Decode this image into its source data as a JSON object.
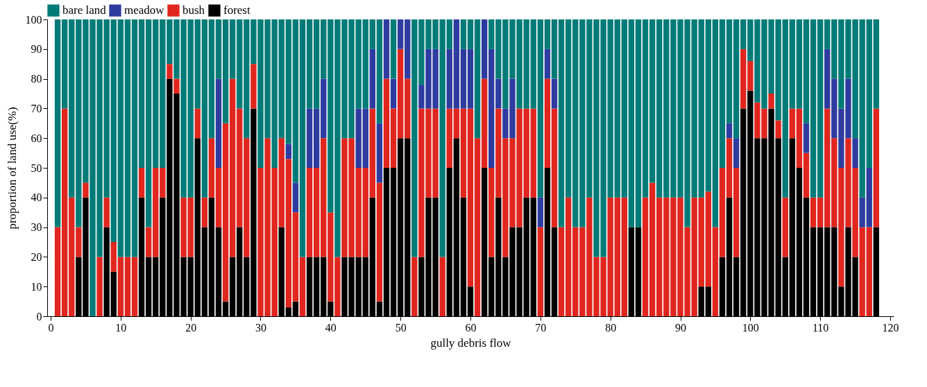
{
  "chart_data": {
    "type": "bar",
    "stacked": true,
    "xlabel": "gully debris flow",
    "ylabel": "proportion of land use(%)",
    "legend": "top",
    "xlim": [
      0,
      120
    ],
    "xticks": [
      0,
      10,
      20,
      30,
      40,
      50,
      60,
      70,
      80,
      90,
      100,
      110,
      120
    ],
    "ylim": [
      0,
      100
    ],
    "yticks": [
      0,
      10,
      20,
      30,
      40,
      50,
      60,
      70,
      80,
      90,
      100
    ],
    "x": [
      1,
      2,
      3,
      4,
      5,
      6,
      7,
      8,
      9,
      10,
      11,
      12,
      13,
      14,
      15,
      16,
      17,
      18,
      19,
      20,
      21,
      22,
      23,
      24,
      25,
      26,
      27,
      28,
      29,
      30,
      31,
      32,
      33,
      34,
      35,
      36,
      37,
      38,
      39,
      40,
      41,
      42,
      43,
      44,
      45,
      46,
      47,
      48,
      49,
      50,
      51,
      52,
      53,
      54,
      55,
      56,
      57,
      58,
      59,
      60,
      61,
      62,
      63,
      64,
      65,
      66,
      67,
      68,
      69,
      70,
      71,
      72,
      73,
      74,
      75,
      76,
      77,
      78,
      79,
      80,
      81,
      82,
      83,
      84,
      85,
      86,
      87,
      88,
      89,
      90,
      91,
      92,
      93,
      94,
      95,
      96,
      97,
      98,
      99,
      100,
      101,
      102,
      103,
      104,
      105,
      106,
      107,
      108,
      109,
      110,
      111,
      112,
      113,
      114,
      115,
      116,
      117,
      118
    ],
    "series": [
      {
        "name": "forest",
        "color": "#000000",
        "values": [
          0,
          0,
          0,
          20,
          40,
          0,
          0,
          30,
          15,
          0,
          0,
          0,
          40,
          20,
          20,
          40,
          80,
          75,
          20,
          20,
          60,
          30,
          40,
          30,
          5,
          20,
          30,
          20,
          70,
          0,
          0,
          0,
          30,
          3,
          5,
          0,
          20,
          20,
          20,
          5,
          0,
          20,
          20,
          20,
          20,
          40,
          5,
          50,
          50,
          60,
          60,
          0,
          20,
          40,
          40,
          0,
          50,
          60,
          40,
          10,
          0,
          50,
          20,
          40,
          20,
          30,
          30,
          40,
          40,
          0,
          50,
          30,
          0,
          0,
          0,
          0,
          0,
          0,
          0,
          0,
          0,
          0,
          30,
          30,
          0,
          0,
          0,
          0,
          0,
          0,
          0,
          0,
          10,
          10,
          0,
          20,
          40,
          20,
          70,
          76,
          60,
          60,
          70,
          60,
          20,
          60,
          50,
          40,
          30,
          30,
          30,
          30,
          10,
          30,
          20,
          0,
          0,
          30
        ]
      },
      {
        "name": "bush",
        "color": "#e0261e",
        "values": [
          30,
          70,
          40,
          10,
          5,
          0,
          20,
          10,
          10,
          20,
          20,
          20,
          10,
          10,
          30,
          10,
          5,
          5,
          20,
          20,
          10,
          10,
          20,
          20,
          60,
          60,
          40,
          40,
          15,
          50,
          60,
          50,
          30,
          50,
          30,
          20,
          30,
          30,
          40,
          30,
          20,
          40,
          40,
          30,
          30,
          30,
          40,
          30,
          20,
          30,
          20,
          20,
          50,
          30,
          30,
          20,
          20,
          10,
          30,
          60,
          60,
          30,
          30,
          30,
          40,
          30,
          40,
          30,
          30,
          30,
          30,
          40,
          30,
          40,
          30,
          30,
          40,
          20,
          20,
          40,
          40,
          40,
          0,
          0,
          40,
          45,
          40,
          40,
          40,
          40,
          30,
          40,
          30,
          32,
          30,
          30,
          20,
          30,
          20,
          10,
          12,
          10,
          5,
          6,
          20,
          10,
          20,
          15,
          10,
          10,
          40,
          30,
          40,
          30,
          30,
          30,
          30,
          40
        ]
      },
      {
        "name": "meadow",
        "color": "#2e3ca0",
        "values": [
          0,
          0,
          0,
          0,
          0,
          0,
          0,
          0,
          0,
          0,
          0,
          0,
          0,
          0,
          0,
          0,
          0,
          0,
          0,
          0,
          0,
          0,
          0,
          30,
          0,
          0,
          0,
          0,
          0,
          0,
          0,
          0,
          0,
          5,
          10,
          0,
          20,
          20,
          20,
          0,
          0,
          0,
          0,
          20,
          20,
          20,
          20,
          20,
          10,
          10,
          20,
          0,
          8,
          20,
          20,
          0,
          20,
          30,
          20,
          20,
          0,
          20,
          40,
          10,
          10,
          20,
          0,
          0,
          0,
          10,
          10,
          10,
          0,
          0,
          0,
          0,
          0,
          0,
          0,
          0,
          0,
          0,
          0,
          0,
          0,
          0,
          0,
          0,
          0,
          0,
          0,
          0,
          0,
          0,
          0,
          0,
          5,
          10,
          0,
          0,
          0,
          0,
          0,
          0,
          0,
          0,
          0,
          10,
          0,
          0,
          20,
          20,
          20,
          20,
          10,
          10,
          20,
          0
        ]
      },
      {
        "name": "bare land",
        "color": "#007b78",
        "values": [
          70,
          30,
          60,
          70,
          55,
          100,
          80,
          60,
          75,
          80,
          80,
          80,
          50,
          70,
          50,
          50,
          15,
          20,
          60,
          60,
          30,
          60,
          40,
          20,
          35,
          20,
          30,
          40,
          15,
          50,
          40,
          50,
          40,
          42,
          55,
          80,
          30,
          30,
          20,
          65,
          80,
          40,
          40,
          30,
          30,
          10,
          35,
          0,
          20,
          0,
          0,
          80,
          22,
          10,
          10,
          80,
          10,
          0,
          10,
          10,
          40,
          0,
          10,
          20,
          30,
          20,
          30,
          30,
          30,
          60,
          10,
          20,
          70,
          60,
          70,
          70,
          60,
          80,
          80,
          60,
          60,
          60,
          70,
          70,
          60,
          55,
          60,
          60,
          60,
          60,
          70,
          60,
          60,
          58,
          70,
          50,
          35,
          40,
          10,
          14,
          28,
          30,
          25,
          34,
          60,
          30,
          30,
          35,
          60,
          60,
          10,
          20,
          30,
          20,
          40,
          60,
          50,
          30
        ]
      }
    ]
  }
}
